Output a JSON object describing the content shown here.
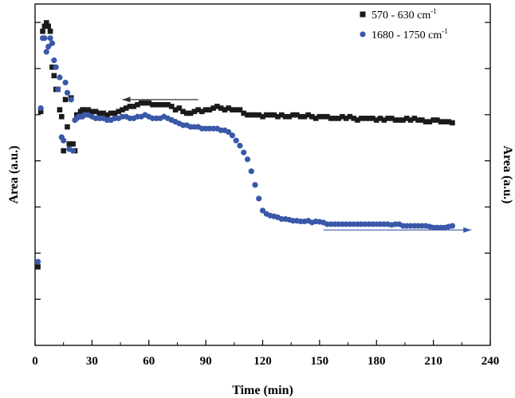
{
  "chart_data": {
    "type": "scatter",
    "title": "",
    "xlabel": "Time (min)",
    "ylabel_left": "Area (a.u.)",
    "ylabel_right": "Area (a.u.)",
    "xlim": [
      0,
      240
    ],
    "xticks": [
      0,
      30,
      60,
      90,
      120,
      150,
      180,
      210,
      240
    ],
    "ylim": [
      0,
      1
    ],
    "grid": false,
    "legend_position": "top-right",
    "annotations": [
      {
        "type": "arrow",
        "direction": "left",
        "points_to": "left axis",
        "series": "570 - 630 cm-1"
      },
      {
        "type": "arrow",
        "direction": "right",
        "points_to": "right axis",
        "series": "1680 - 1750 cm-1"
      }
    ],
    "series": [
      {
        "name": "570 - 630 cm",
        "name_sup": "-1",
        "marker": "square",
        "color": "#1a1a1a",
        "x": [
          1.5,
          3,
          4,
          5,
          6,
          7,
          8,
          9,
          10,
          11,
          12,
          13,
          14,
          15,
          16,
          17,
          18,
          19,
          20,
          21,
          22,
          23,
          24,
          25,
          26,
          28,
          30,
          32,
          34,
          36,
          38,
          40,
          42,
          44,
          46,
          48,
          50,
          52,
          54,
          56,
          58,
          60,
          62,
          64,
          66,
          68,
          70,
          72,
          74,
          76,
          78,
          80,
          82,
          84,
          86,
          88,
          90,
          92,
          94,
          96,
          98,
          100,
          102,
          104,
          106,
          108,
          110,
          112,
          114,
          116,
          118,
          120,
          122,
          124,
          126,
          128,
          130,
          132,
          134,
          136,
          138,
          140,
          142,
          144,
          146,
          148,
          150,
          152,
          154,
          156,
          158,
          160,
          162,
          164,
          166,
          168,
          170,
          172,
          174,
          176,
          178,
          180,
          182,
          184,
          186,
          188,
          190,
          192,
          194,
          196,
          198,
          200,
          202,
          204,
          206,
          208,
          210,
          212,
          214,
          216,
          218,
          220
        ],
        "y": [
          0.23,
          0.685,
          0.92,
          0.935,
          0.945,
          0.935,
          0.92,
          0.815,
          0.79,
          0.75,
          0.75,
          0.69,
          0.67,
          0.57,
          0.72,
          0.64,
          0.59,
          0.725,
          0.59,
          0.57,
          0.675,
          0.675,
          0.685,
          0.69,
          0.69,
          0.69,
          0.685,
          0.685,
          0.68,
          0.68,
          0.675,
          0.68,
          0.68,
          0.685,
          0.69,
          0.695,
          0.7,
          0.7,
          0.705,
          0.71,
          0.71,
          0.71,
          0.705,
          0.705,
          0.705,
          0.705,
          0.705,
          0.7,
          0.69,
          0.695,
          0.685,
          0.68,
          0.68,
          0.685,
          0.69,
          0.685,
          0.69,
          0.69,
          0.695,
          0.7,
          0.695,
          0.69,
          0.695,
          0.69,
          0.69,
          0.69,
          0.68,
          0.675,
          0.675,
          0.675,
          0.675,
          0.67,
          0.675,
          0.675,
          0.675,
          0.67,
          0.675,
          0.67,
          0.67,
          0.675,
          0.675,
          0.67,
          0.67,
          0.675,
          0.67,
          0.665,
          0.67,
          0.67,
          0.67,
          0.665,
          0.665,
          0.665,
          0.67,
          0.665,
          0.67,
          0.665,
          0.66,
          0.665,
          0.665,
          0.665,
          0.665,
          0.66,
          0.665,
          0.66,
          0.665,
          0.665,
          0.66,
          0.66,
          0.66,
          0.665,
          0.66,
          0.665,
          0.66,
          0.66,
          0.655,
          0.655,
          0.66,
          0.66,
          0.655,
          0.655,
          0.655,
          0.652
        ]
      },
      {
        "name": "1680 - 1750 cm",
        "name_sup": "-1",
        "marker": "circle",
        "color": "#3a58a8",
        "x": [
          1.5,
          3,
          4,
          5,
          6,
          7,
          8,
          9,
          10,
          11,
          12,
          13,
          14,
          15,
          16,
          17,
          18,
          19,
          20,
          21,
          22,
          23,
          24,
          25,
          26,
          28,
          30,
          32,
          34,
          36,
          38,
          40,
          42,
          44,
          46,
          48,
          50,
          52,
          54,
          56,
          58,
          60,
          62,
          64,
          66,
          68,
          70,
          72,
          74,
          76,
          78,
          80,
          82,
          84,
          86,
          88,
          90,
          92,
          94,
          96,
          98,
          100,
          102,
          104,
          106,
          108,
          110,
          112,
          114,
          116,
          118,
          120,
          122,
          124,
          126,
          128,
          130,
          132,
          134,
          136,
          138,
          140,
          142,
          144,
          146,
          148,
          150,
          152,
          154,
          156,
          158,
          160,
          162,
          164,
          166,
          168,
          170,
          172,
          174,
          176,
          178,
          180,
          182,
          184,
          186,
          188,
          190,
          192,
          194,
          196,
          198,
          200,
          202,
          204,
          206,
          208,
          210,
          212,
          214,
          216,
          218,
          220
        ],
        "y": [
          0.245,
          0.695,
          0.9,
          0.9,
          0.86,
          0.875,
          0.9,
          0.885,
          0.835,
          0.815,
          0.75,
          0.785,
          0.61,
          0.6,
          0.77,
          0.74,
          0.575,
          0.72,
          0.57,
          0.66,
          0.665,
          0.67,
          0.67,
          0.67,
          0.675,
          0.675,
          0.67,
          0.665,
          0.665,
          0.665,
          0.66,
          0.66,
          0.665,
          0.665,
          0.67,
          0.67,
          0.665,
          0.665,
          0.67,
          0.67,
          0.675,
          0.67,
          0.665,
          0.665,
          0.665,
          0.67,
          0.665,
          0.66,
          0.655,
          0.65,
          0.645,
          0.645,
          0.64,
          0.64,
          0.64,
          0.635,
          0.635,
          0.635,
          0.635,
          0.635,
          0.63,
          0.63,
          0.625,
          0.615,
          0.6,
          0.585,
          0.565,
          0.545,
          0.51,
          0.47,
          0.43,
          0.395,
          0.385,
          0.38,
          0.378,
          0.375,
          0.37,
          0.37,
          0.368,
          0.365,
          0.365,
          0.363,
          0.363,
          0.365,
          0.36,
          0.363,
          0.362,
          0.36,
          0.355,
          0.355,
          0.355,
          0.355,
          0.355,
          0.355,
          0.355,
          0.355,
          0.355,
          0.355,
          0.355,
          0.355,
          0.355,
          0.355,
          0.355,
          0.355,
          0.355,
          0.353,
          0.355,
          0.355,
          0.35,
          0.35,
          0.35,
          0.35,
          0.35,
          0.35,
          0.35,
          0.348,
          0.345,
          0.345,
          0.345,
          0.345,
          0.348,
          0.35
        ]
      }
    ]
  }
}
